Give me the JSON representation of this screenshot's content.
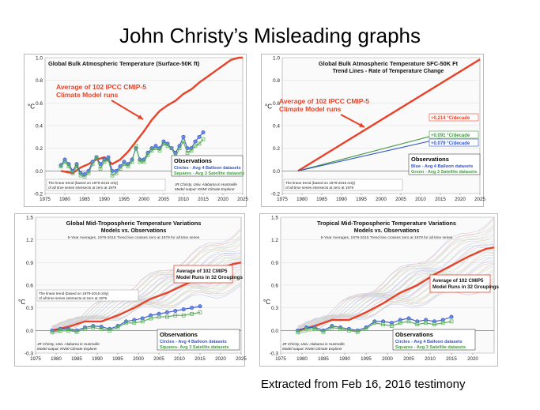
{
  "page": {
    "title": "John Christy’s Misleading graphs",
    "caption": "Extracted from Feb 16, 2016 testimony"
  },
  "chart_data": [
    {
      "type": "line",
      "title": "Global Bulk Atmospheric Temperature (Surface-50K ft)",
      "ylabel": "°C",
      "xlim": [
        1975,
        2025
      ],
      "ylim": [
        -0.2,
        1.0
      ],
      "xticks": [
        1975,
        1980,
        1985,
        1990,
        1995,
        2000,
        2005,
        2010,
        2015,
        2020,
        2025
      ],
      "yticks": [
        -0.2,
        0.0,
        0.2,
        0.4,
        0.6,
        0.8,
        1.0
      ],
      "annotation": "Average of 102 IPCC CMIP-5 Climate Model runs",
      "legend_title": "Observations",
      "legend_items": [
        "Circles - Avg 4 Balloon datasets",
        "Squares - Avg 3 Satellite datasets"
      ],
      "note": "The linear trend (based on 1979-2015 only) of all time series intersects at zero at 1979",
      "credit1": "JR Christy, Univ. Alabama in Huntsville",
      "credit2": "Model output: KNMI Climate Explorer",
      "series": [
        {
          "name": "Average of 102 IPCC CMIP-5 Climate Model runs",
          "color": "#e8432a",
          "x": [
            1979,
            1982,
            1984,
            1986,
            1988,
            1990,
            1992,
            1994,
            1996,
            1998,
            2000,
            2002,
            2004,
            2006,
            2008,
            2010,
            2012,
            2014,
            2016,
            2018,
            2020,
            2022,
            2024,
            2025
          ],
          "y": [
            0.0,
            -0.02,
            0.03,
            0.06,
            0.1,
            0.12,
            0.06,
            0.1,
            0.17,
            0.26,
            0.35,
            0.45,
            0.53,
            0.58,
            0.62,
            0.68,
            0.72,
            0.78,
            0.83,
            0.88,
            0.93,
            0.98,
            1.0,
            1.0
          ]
        },
        {
          "name": "Circles - Avg 4 Balloon datasets",
          "color": "#3355cc",
          "marker": "circle",
          "x": [
            1979,
            1980,
            1981,
            1982,
            1983,
            1984,
            1985,
            1986,
            1987,
            1988,
            1989,
            1990,
            1991,
            1992,
            1993,
            1994,
            1995,
            1996,
            1997,
            1998,
            1999,
            2000,
            2001,
            2002,
            2003,
            2004,
            2005,
            2006,
            2007,
            2008,
            2009,
            2010,
            2011,
            2012,
            2013,
            2014,
            2015
          ],
          "y": [
            0.05,
            0.1,
            0.06,
            0.0,
            0.06,
            -0.02,
            -0.03,
            0.0,
            0.08,
            0.12,
            0.06,
            0.1,
            0.12,
            0.0,
            0.0,
            0.04,
            0.08,
            0.06,
            0.1,
            0.2,
            0.1,
            0.1,
            0.16,
            0.2,
            0.22,
            0.2,
            0.26,
            0.24,
            0.2,
            0.16,
            0.22,
            0.3,
            0.2,
            0.2,
            0.26,
            0.3,
            0.34
          ]
        },
        {
          "name": "Squares - Avg 3 Satellite datasets",
          "color": "#55aa55",
          "marker": "square",
          "x": [
            1979,
            1980,
            1981,
            1982,
            1983,
            1984,
            1985,
            1986,
            1987,
            1988,
            1989,
            1990,
            1991,
            1992,
            1993,
            1994,
            1995,
            1996,
            1997,
            1998,
            1999,
            2000,
            2001,
            2002,
            2003,
            2004,
            2005,
            2006,
            2007,
            2008,
            2009,
            2010,
            2011,
            2012,
            2013,
            2014,
            2015
          ],
          "y": [
            0.04,
            0.08,
            0.04,
            -0.02,
            0.04,
            -0.04,
            -0.05,
            -0.02,
            0.06,
            0.12,
            0.02,
            0.08,
            0.1,
            -0.04,
            -0.02,
            0.02,
            0.06,
            0.04,
            0.08,
            0.22,
            0.08,
            0.08,
            0.14,
            0.18,
            0.2,
            0.18,
            0.24,
            0.22,
            0.2,
            0.12,
            0.2,
            0.26,
            0.16,
            0.18,
            0.22,
            0.24,
            0.28
          ]
        }
      ]
    },
    {
      "type": "line",
      "title": "Global Bulk Atmospheric Temperature SFC-50K Ft",
      "subtitle": "Trend Lines - Rate of Temperature Change",
      "ylabel": "°C",
      "xlim": [
        1975,
        2025
      ],
      "ylim": [
        -0.2,
        1.0
      ],
      "xticks": [
        1975,
        1980,
        1985,
        1990,
        1995,
        2000,
        2005,
        2010,
        2015,
        2020,
        2025
      ],
      "yticks": [
        -0.2,
        0.0,
        0.2,
        0.4,
        0.6,
        0.8,
        1.0
      ],
      "annotation": "Average of 102 IPCC CMIP-5 Climate Model runs",
      "legend_title": "Observations",
      "legend_items": [
        "Blue - Avg 4 Balloon datasets",
        "Green - Avg 3 Satellite datasets"
      ],
      "note": "The linear trend (based on 1979-2015 only) of all time series intersects at zero at 1979",
      "trend_labels": [
        "+0.214 °C/decade",
        "+0.091 °C/decade",
        "+0.079 °C/decade"
      ],
      "series": [
        {
          "name": "+0.214 °C/decade",
          "color": "#e8432a",
          "x": [
            1979,
            2025
          ],
          "y": [
            0.0,
            0.985
          ]
        },
        {
          "name": "+0.091 °C/decade",
          "color": "#449944",
          "x": [
            1979,
            2015
          ],
          "y": [
            0.0,
            0.328
          ]
        },
        {
          "name": "+0.079 °C/decade",
          "color": "#3355cc",
          "x": [
            1979,
            2015
          ],
          "y": [
            0.0,
            0.284
          ]
        }
      ]
    },
    {
      "type": "line",
      "title": "Global Mid-Tropospheric Temperature Variations",
      "subtitle": "Models vs. Observations",
      "subtitle2": "5-Year Averages, 1979-2015 Trend line crosses zero at 1979 for all time series",
      "ylabel": "°C",
      "xlim": [
        1975,
        2025
      ],
      "ylim": [
        -0.3,
        1.5
      ],
      "xticks": [
        1975,
        1980,
        1985,
        1990,
        1995,
        2000,
        2005,
        2010,
        2015,
        2020,
        2025
      ],
      "yticks": [
        -0.3,
        0.0,
        0.3,
        0.6,
        0.9,
        1.2,
        1.5
      ],
      "annotation": "Average of 102 CMIP5 Model Runs in 32 Groupings",
      "legend_title": "Observations",
      "legend_items": [
        "Circles - Avg 4 Balloon datasets",
        "Squares- Avg 3 Satellite datasets"
      ],
      "note": "The linear trend (based on 1979-2015 only) of all time series intersects at zero at 1979",
      "credit1": "JR Christy, Univ. Alabama in Huntsville",
      "credit2": "Model output: KNMI Climate Explorer",
      "series": [
        {
          "name": "Average of 102 CMIP5 Model Runs in 32 Groupings",
          "color": "#e8432a",
          "x": [
            1979,
            1983,
            1987,
            1991,
            1995,
            1999,
            2003,
            2007,
            2011,
            2015,
            2019,
            2023,
            2025
          ],
          "y": [
            0.0,
            0.05,
            0.12,
            0.12,
            0.2,
            0.3,
            0.42,
            0.5,
            0.6,
            0.7,
            0.8,
            0.88,
            0.9
          ]
        },
        {
          "name": "Circles - Avg 4 Balloon datasets",
          "color": "#3355cc",
          "marker": "circle",
          "x": [
            1979,
            1981,
            1983,
            1985,
            1987,
            1989,
            1991,
            1993,
            1995,
            1997,
            1999,
            2001,
            2003,
            2005,
            2007,
            2009,
            2011,
            2013,
            2015
          ],
          "y": [
            0.0,
            0.02,
            0.02,
            0.0,
            0.04,
            0.06,
            0.05,
            0.02,
            0.06,
            0.12,
            0.14,
            0.16,
            0.2,
            0.22,
            0.24,
            0.26,
            0.28,
            0.3,
            0.32
          ]
        },
        {
          "name": "Squares- Avg 3 Satellite datasets",
          "color": "#55aa55",
          "marker": "square",
          "x": [
            1979,
            1981,
            1983,
            1985,
            1987,
            1989,
            1991,
            1993,
            1995,
            1997,
            1999,
            2001,
            2003,
            2005,
            2007,
            2009,
            2011,
            2013,
            2015
          ],
          "y": [
            -0.02,
            0.0,
            0.0,
            -0.02,
            0.02,
            0.04,
            0.02,
            0.0,
            0.04,
            0.1,
            0.1,
            0.12,
            0.16,
            0.18,
            0.18,
            0.2,
            0.2,
            0.22,
            0.24
          ]
        }
      ]
    },
    {
      "type": "line",
      "title": "Tropical Mid-Tropospheric Temperature Variations",
      "subtitle": "Models vs. Observations",
      "subtitle2": "5-Year Averages, 1979-2015 Trend line crosses zero at 1979 for all time series",
      "ylabel": "°C",
      "xlim": [
        1975,
        2025
      ],
      "ylim": [
        -0.3,
        1.5
      ],
      "xticks": [
        1975,
        1980,
        1985,
        1990,
        1995,
        2000,
        2005,
        2010,
        2015,
        2020
      ],
      "yticks": [
        -0.3,
        0.0,
        0.3,
        0.6,
        0.9,
        1.2,
        1.5
      ],
      "annotation": "Average of 102 CMIP5 Model Runs in 32 Groupings",
      "legend_title": "Observations",
      "legend_items": [
        "Circles - Avg 4 Balloon datasets",
        "Squares - Avg 3 Satellite datasets"
      ],
      "credit1": "JR Christy, Univ. Alabama in Huntsville",
      "credit2": "Model output: KNMI Climate Explorer",
      "series": [
        {
          "name": "Average of 102 CMIP5 Model Runs in 32 Groupings",
          "color": "#e8432a",
          "x": [
            1979,
            1983,
            1987,
            1991,
            1995,
            1999,
            2003,
            2007,
            2011,
            2015,
            2019,
            2023,
            2025
          ],
          "y": [
            0.0,
            0.06,
            0.14,
            0.14,
            0.24,
            0.36,
            0.5,
            0.6,
            0.74,
            0.86,
            0.98,
            1.08,
            1.1
          ]
        },
        {
          "name": "Circles - Avg 4 Balloon datasets",
          "color": "#3355cc",
          "marker": "circle",
          "x": [
            1979,
            1981,
            1983,
            1985,
            1987,
            1989,
            1991,
            1993,
            1995,
            1997,
            1999,
            2001,
            2003,
            2005,
            2007,
            2009,
            2011,
            2013,
            2015
          ],
          "y": [
            0.0,
            0.04,
            0.04,
            0.0,
            0.06,
            0.04,
            0.02,
            0.0,
            0.04,
            0.12,
            0.12,
            0.1,
            0.14,
            0.16,
            0.12,
            0.14,
            0.12,
            0.14,
            0.18
          ]
        },
        {
          "name": "Squares - Avg 3 Satellite datasets",
          "color": "#55aa55",
          "marker": "square",
          "x": [
            1979,
            1981,
            1983,
            1985,
            1987,
            1989,
            1991,
            1993,
            1995,
            1997,
            1999,
            2001,
            2003,
            2005,
            2007,
            2009,
            2011,
            2013,
            2015
          ],
          "y": [
            -0.02,
            0.02,
            0.02,
            -0.02,
            0.04,
            0.02,
            0.0,
            -0.02,
            0.02,
            0.1,
            0.08,
            0.06,
            0.1,
            0.12,
            0.08,
            0.1,
            0.08,
            0.1,
            0.12
          ]
        }
      ]
    }
  ]
}
